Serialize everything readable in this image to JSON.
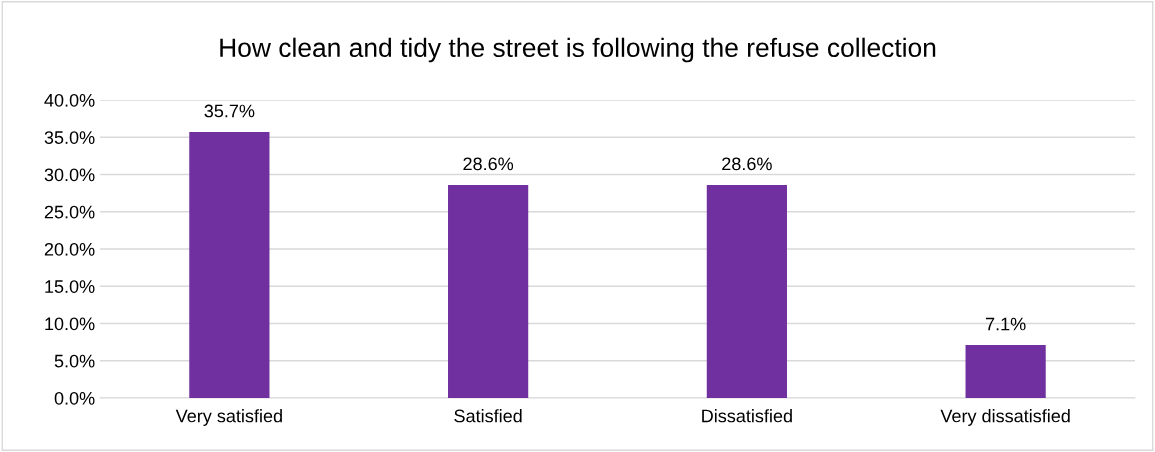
{
  "chart_data": {
    "type": "bar",
    "title": "How clean and tidy the street is following the refuse collection",
    "categories": [
      "Very satisfied",
      "Satisfied",
      "Dissatisfied",
      "Very dissatisfied"
    ],
    "values": [
      35.7,
      28.6,
      28.6,
      7.1
    ],
    "color": "#7030a0",
    "value_labels": [
      "35.7%",
      "28.6%",
      "28.6%",
      "7.1%"
    ],
    "ylim": [
      0,
      40
    ],
    "yticks": [
      {
        "value": 0,
        "label": "0.0%"
      },
      {
        "value": 5,
        "label": "5.0%"
      },
      {
        "value": 10,
        "label": "10.0%"
      },
      {
        "value": 15,
        "label": "15.0%"
      },
      {
        "value": 20,
        "label": "20.0%"
      },
      {
        "value": 25,
        "label": "25.0%"
      },
      {
        "value": 30,
        "label": "30.0%"
      },
      {
        "value": 35,
        "label": "35.0%"
      },
      {
        "value": 40,
        "label": "40.0%"
      }
    ],
    "grid": "y",
    "legend": false
  }
}
